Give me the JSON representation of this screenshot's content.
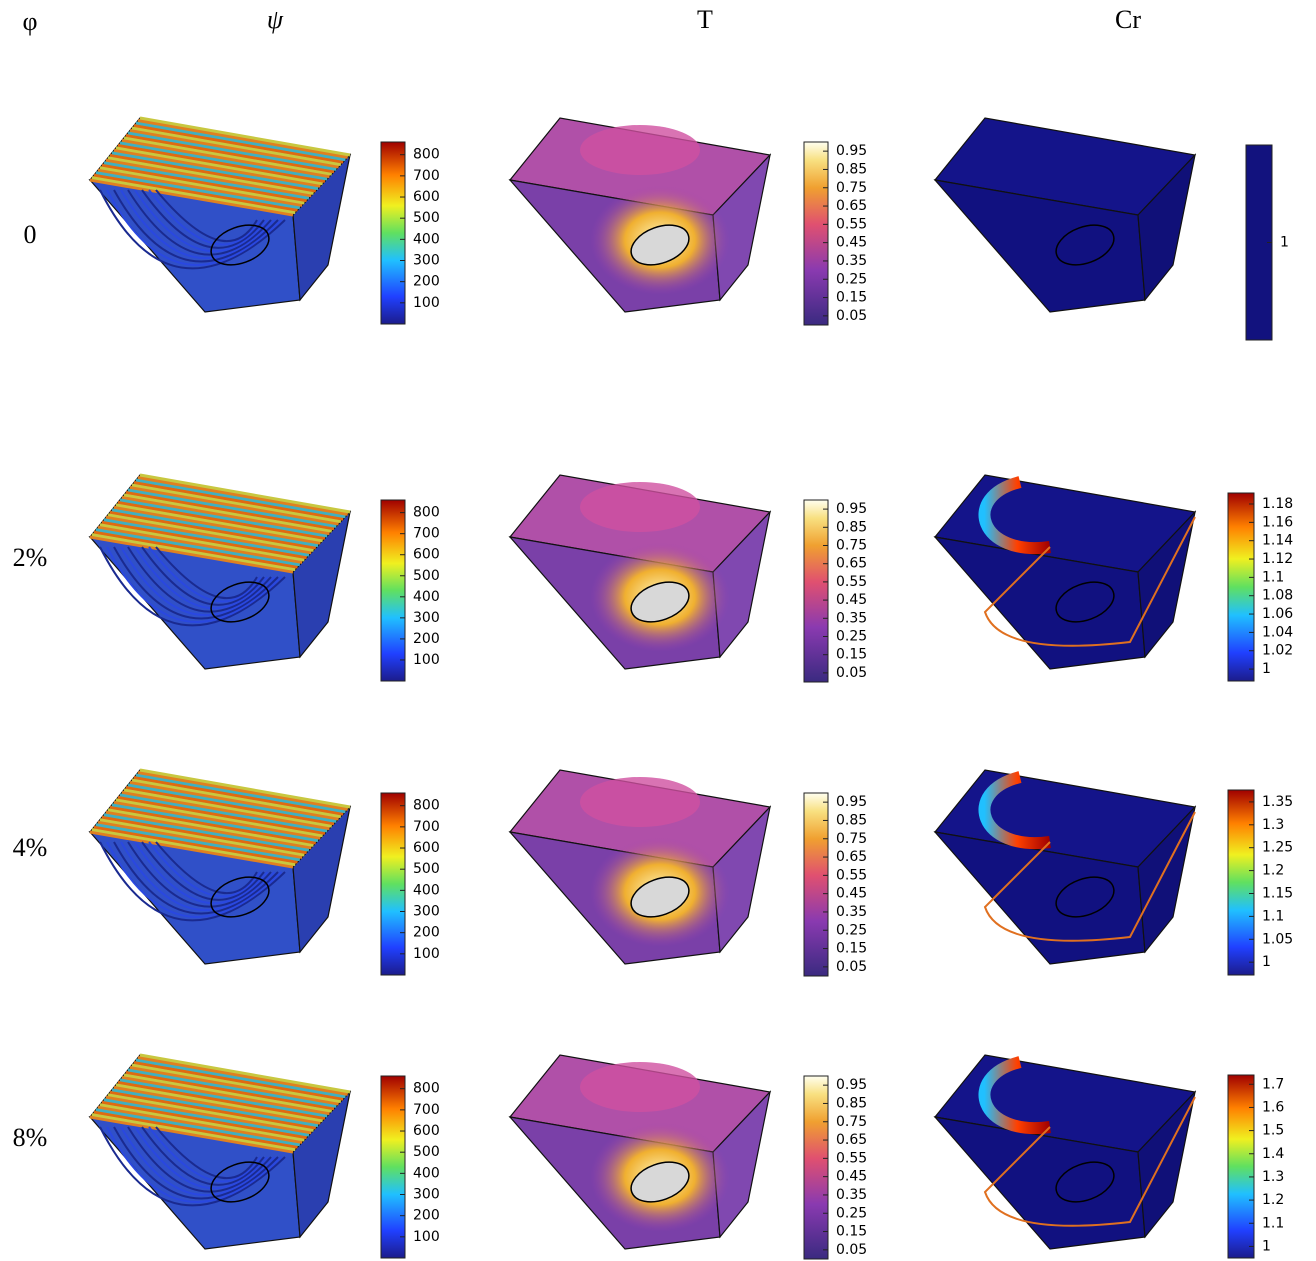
{
  "column_headers": [
    "φ",
    "ψ",
    "T",
    "Cr"
  ],
  "row_labels": [
    "0",
    "2%",
    "4%",
    "8%"
  ],
  "psi_colorbar": {
    "lim": [
      0,
      860
    ],
    "ticks": [
      100,
      200,
      300,
      400,
      500,
      600,
      700,
      800
    ]
  },
  "t_colorbar": {
    "lim": [
      0,
      1
    ],
    "ticks": [
      0.05,
      0.15,
      0.25,
      0.35,
      0.45,
      0.55,
      0.65,
      0.75,
      0.85,
      0.95
    ]
  },
  "cr_colorbars": [
    {
      "lim": [
        0.5,
        1.5
      ],
      "ticks": [
        1
      ]
    },
    {
      "lim": [
        0.987,
        1.192
      ],
      "ticks": [
        1,
        1.02,
        1.04,
        1.06,
        1.08,
        1.1,
        1.12,
        1.14,
        1.16,
        1.18
      ]
    },
    {
      "lim": [
        0.972,
        1.376
      ],
      "ticks": [
        1,
        1.05,
        1.1,
        1.15,
        1.2,
        1.25,
        1.3,
        1.35
      ]
    },
    {
      "lim": [
        0.95,
        1.74
      ],
      "ticks": [
        1,
        1.1,
        1.2,
        1.3,
        1.4,
        1.5,
        1.6,
        1.7
      ]
    }
  ]
}
